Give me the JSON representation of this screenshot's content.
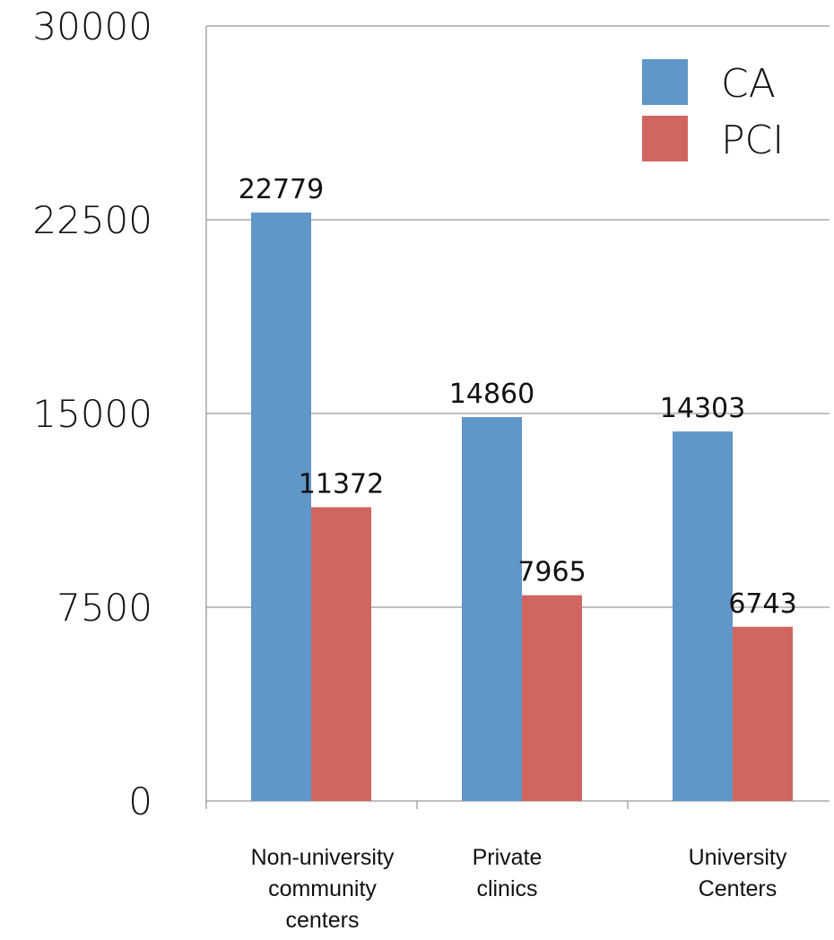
{
  "chart_data": {
    "type": "bar",
    "categories": [
      [
        "Non-university",
        "community",
        "centers"
      ],
      [
        "Private",
        "clinics"
      ],
      [
        "University",
        "Centers"
      ]
    ],
    "series": [
      {
        "name": "CA",
        "values": [
          22779,
          14860,
          14303
        ],
        "color": "#6096C8"
      },
      {
        "name": "PCI",
        "values": [
          11372,
          7965,
          6743
        ],
        "color": "#D0665F"
      }
    ],
    "y_ticks": [
      "0",
      "7500",
      "15000",
      "22500",
      "30000"
    ],
    "ylim": [
      0,
      30000
    ],
    "grid": true,
    "legend_position": "top-right",
    "data_labels": true
  }
}
